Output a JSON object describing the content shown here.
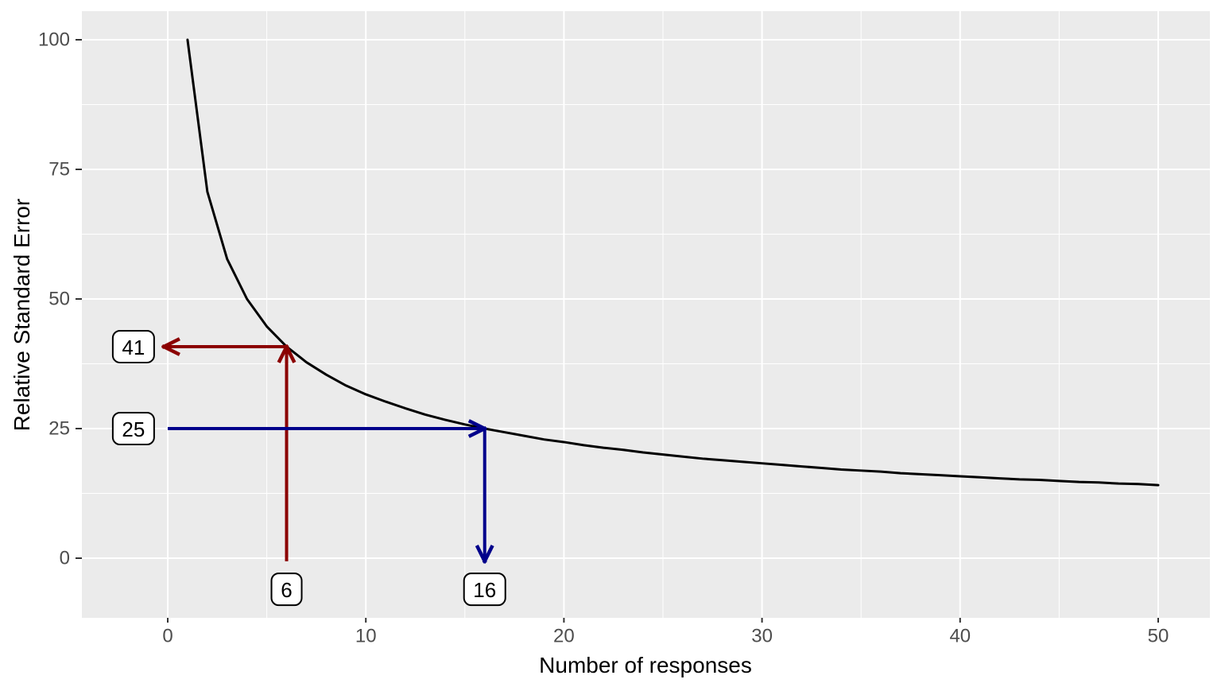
{
  "chart_data": {
    "type": "line",
    "title": "",
    "xlabel": "Number of responses",
    "ylabel": "Relative Standard Error",
    "xlim": [
      -4.3,
      52.6
    ],
    "ylim": [
      -11.5,
      105.5
    ],
    "grid": true,
    "legend_position": "none",
    "x_major_ticks": [
      0,
      10,
      20,
      30,
      40,
      50
    ],
    "y_major_ticks": [
      0,
      25,
      50,
      75,
      100
    ],
    "x_minor_gridlines": [
      5,
      15,
      25,
      35,
      45
    ],
    "y_minor_gridlines": [
      12.5,
      37.5,
      62.5,
      87.5
    ],
    "series": [
      {
        "name": "relative-standard-error-curve",
        "formula": "RSE = 100 / sqrt(n)",
        "color": "#000000",
        "x": [
          1,
          2,
          3,
          4,
          5,
          6,
          7,
          8,
          9,
          10,
          11,
          12,
          13,
          14,
          15,
          16,
          17,
          18,
          19,
          20,
          21,
          22,
          23,
          24,
          25,
          26,
          27,
          28,
          29,
          30,
          31,
          32,
          33,
          34,
          35,
          36,
          37,
          38,
          39,
          40,
          41,
          42,
          43,
          44,
          45,
          46,
          47,
          48,
          49,
          50
        ],
        "y": [
          100.0,
          70.7,
          57.7,
          50.0,
          44.7,
          40.8,
          37.8,
          35.4,
          33.3,
          31.6,
          30.2,
          28.9,
          27.7,
          26.7,
          25.8,
          25.0,
          24.3,
          23.6,
          22.9,
          22.4,
          21.8,
          21.3,
          20.9,
          20.4,
          20.0,
          19.6,
          19.2,
          18.9,
          18.6,
          18.3,
          18.0,
          17.7,
          17.4,
          17.1,
          16.9,
          16.7,
          16.4,
          16.2,
          16.0,
          15.8,
          15.6,
          15.4,
          15.2,
          15.1,
          14.9,
          14.7,
          14.6,
          14.4,
          14.3,
          14.1
        ]
      }
    ],
    "annotations": [
      {
        "id": "dark-red-trace",
        "color": "#8B0000",
        "meaning": "n = 6 responses gives RSE = 41",
        "segments": [
          {
            "from": [
              6,
              -0.6
            ],
            "to": [
              6,
              40.8
            ],
            "arrow": "end"
          },
          {
            "from": [
              6,
              40.8
            ],
            "to": [
              -0.2,
              40.8
            ],
            "arrow": "end"
          }
        ],
        "labels": [
          {
            "text": "41",
            "x": -1.73,
            "y": 40.8
          },
          {
            "text": "6",
            "x": 6,
            "y": -6.0
          }
        ]
      },
      {
        "id": "dark-blue-trace",
        "color": "#00008B",
        "meaning": "RSE = 25 requires n = 16 responses",
        "segments": [
          {
            "from": [
              0,
              25
            ],
            "to": [
              16,
              25
            ],
            "arrow": "end"
          },
          {
            "from": [
              16,
              25
            ],
            "to": [
              16,
              -0.6
            ],
            "arrow": "end"
          }
        ],
        "labels": [
          {
            "text": "25",
            "x": -1.73,
            "y": 25
          },
          {
            "text": "16",
            "x": 16,
            "y": -6.0
          }
        ]
      }
    ],
    "colors": {
      "panel_background": "#EBEBEB",
      "gridline": "#FFFFFF",
      "tick_mark": "#333333",
      "tick_text": "#4D4D4D",
      "axis_title": "#000000",
      "curve": "#000000",
      "label_box_fill": "#FFFFFF",
      "label_box_border": "#000000",
      "red_arrow": "#8B0000",
      "blue_arrow": "#00008B"
    }
  }
}
